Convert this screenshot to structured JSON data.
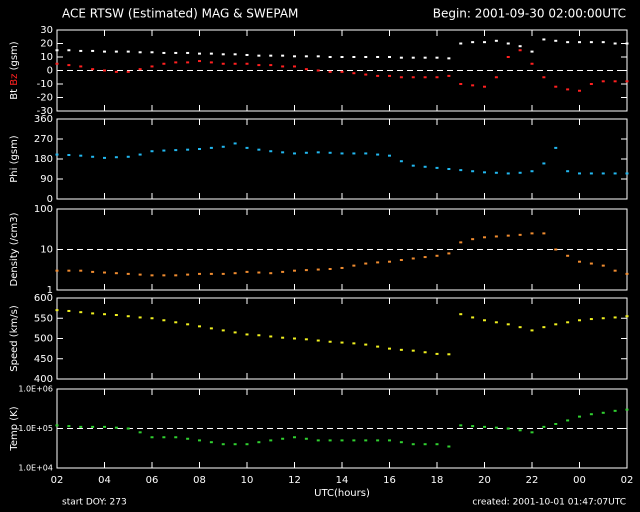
{
  "header": {
    "title": "ACE RTSW (Estimated) MAG & SWEPAM",
    "begin": "Begin: 2001-09-30 02:00:00UTC"
  },
  "footer": {
    "start": "start DOY: 273",
    "created": "created: 2001-10-01 01:47:07UTC"
  },
  "chart_data": [
    {
      "type": "scatter",
      "ylabel": "(gsm)",
      "xlim": [
        2,
        26
      ],
      "ylim": [
        -30,
        30
      ],
      "yticks": [
        30,
        20,
        10,
        0,
        -10,
        -20,
        -30
      ],
      "ref_line": 0,
      "log": false,
      "x": [
        2,
        2.5,
        3,
        3.5,
        4,
        4.5,
        5,
        5.5,
        6,
        6.5,
        7,
        7.5,
        8,
        8.5,
        9,
        9.5,
        10,
        10.5,
        11,
        11.5,
        12,
        12.5,
        13,
        13.5,
        14,
        14.5,
        15,
        15.5,
        16,
        16.5,
        17,
        17.5,
        18,
        18.5,
        19,
        19.5,
        20,
        20.5,
        21,
        21.5,
        22,
        22.5,
        23,
        23.5,
        24,
        24.5,
        25,
        25.5,
        26
      ],
      "series": [
        {
          "name": "Bt",
          "color": "#ffffff",
          "values": [
            15,
            15,
            14.5,
            14.5,
            14,
            14,
            14,
            13.5,
            13.5,
            13,
            13,
            13,
            12.5,
            12.5,
            12,
            12,
            11.5,
            11,
            11,
            11,
            10.5,
            10.5,
            10.5,
            10,
            10,
            10,
            10,
            10,
            10,
            9.5,
            9.5,
            9.5,
            9.5,
            9,
            20,
            21,
            21,
            22,
            20,
            18,
            14,
            23,
            22,
            21,
            21,
            21,
            21,
            20,
            20
          ]
        },
        {
          "name": "Bz",
          "color": "#ff2020",
          "values": [
            5,
            4,
            3,
            1,
            0,
            -1,
            -1,
            1,
            3,
            5,
            6,
            6,
            7,
            6,
            5,
            5,
            5,
            4,
            4,
            3,
            3,
            1,
            0,
            -1,
            -1,
            -2,
            -3,
            -4,
            -4,
            -5,
            -5,
            -5,
            -5,
            -4,
            -10,
            -11,
            -12,
            -5,
            10,
            15,
            5,
            -5,
            -12,
            -14,
            -15,
            -10,
            -8,
            -8,
            -8
          ]
        }
      ]
    },
    {
      "type": "scatter",
      "ylabel": "Phi (gsm)",
      "xlim": [
        2,
        26
      ],
      "ylim": [
        0,
        360
      ],
      "yticks": [
        0,
        90,
        180,
        270,
        360
      ],
      "log": false,
      "x": [
        2,
        2.5,
        3,
        3.5,
        4,
        4.5,
        5,
        5.5,
        6,
        6.5,
        7,
        7.5,
        8,
        8.5,
        9,
        9.5,
        10,
        10.5,
        11,
        11.5,
        12,
        12.5,
        13,
        13.5,
        14,
        14.5,
        15,
        15.5,
        16,
        16.5,
        17,
        17.5,
        18,
        18.5,
        19,
        19.5,
        20,
        20.5,
        21,
        21.5,
        22,
        22.5,
        23,
        23.5,
        24,
        24.5,
        25,
        25.5,
        26
      ],
      "series": [
        {
          "name": "Phi",
          "color": "#22b8f0",
          "values": [
            200,
            198,
            195,
            190,
            185,
            188,
            190,
            200,
            215,
            218,
            220,
            222,
            225,
            230,
            235,
            250,
            230,
            222,
            215,
            210,
            205,
            208,
            210,
            208,
            205,
            205,
            205,
            200,
            195,
            170,
            150,
            145,
            140,
            135,
            130,
            125,
            120,
            118,
            115,
            118,
            125,
            160,
            230,
            125,
            115,
            115,
            115,
            115,
            115
          ]
        }
      ]
    },
    {
      "type": "scatter",
      "ylabel": "Density (/cm3)",
      "xlim": [
        2,
        26
      ],
      "ylim": [
        1,
        100
      ],
      "yticks": [
        1,
        10,
        100
      ],
      "ref_line": 10,
      "log": true,
      "x": [
        2,
        2.5,
        3,
        3.5,
        4,
        4.5,
        5,
        5.5,
        6,
        6.5,
        7,
        7.5,
        8,
        8.5,
        9,
        9.5,
        10,
        10.5,
        11,
        11.5,
        12,
        12.5,
        13,
        13.5,
        14,
        14.5,
        15,
        15.5,
        16,
        16.5,
        17,
        17.5,
        18,
        18.5,
        19,
        19.5,
        20,
        20.5,
        21,
        21.5,
        22,
        22.5,
        23,
        23.5,
        24,
        24.5,
        25,
        25.5,
        26
      ],
      "series": [
        {
          "name": "Density",
          "color": "#f08c30",
          "values": [
            3,
            3,
            3,
            2.8,
            2.7,
            2.6,
            2.5,
            2.4,
            2.3,
            2.3,
            2.3,
            2.4,
            2.5,
            2.5,
            2.5,
            2.6,
            2.8,
            2.7,
            2.6,
            2.8,
            3,
            3.1,
            3.2,
            3.3,
            3.5,
            4,
            4.5,
            4.8,
            5,
            5.5,
            6,
            6.5,
            7,
            8,
            15,
            18,
            20,
            21,
            22,
            23,
            25,
            25,
            10,
            7,
            5,
            4.5,
            4,
            3,
            2.5
          ]
        }
      ]
    },
    {
      "type": "scatter",
      "ylabel": "Speed (km/s)",
      "xlim": [
        2,
        26
      ],
      "ylim": [
        400,
        600
      ],
      "yticks": [
        400,
        450,
        500,
        550,
        600
      ],
      "log": false,
      "x": [
        2,
        2.5,
        3,
        3.5,
        4,
        4.5,
        5,
        5.5,
        6,
        6.5,
        7,
        7.5,
        8,
        8.5,
        9,
        9.5,
        10,
        10.5,
        11,
        11.5,
        12,
        12.5,
        13,
        13.5,
        14,
        14.5,
        15,
        15.5,
        16,
        16.5,
        17,
        17.5,
        18,
        18.5,
        19,
        19.5,
        20,
        20.5,
        21,
        21.5,
        22,
        22.5,
        23,
        23.5,
        24,
        24.5,
        25,
        25.5,
        26
      ],
      "series": [
        {
          "name": "Speed",
          "color": "#f0f020",
          "values": [
            570,
            568,
            565,
            562,
            560,
            558,
            555,
            552,
            550,
            545,
            540,
            535,
            530,
            525,
            520,
            515,
            510,
            508,
            505,
            502,
            500,
            498,
            495,
            492,
            490,
            488,
            485,
            480,
            475,
            472,
            470,
            466,
            462,
            461,
            560,
            552,
            545,
            540,
            535,
            528,
            520,
            528,
            535,
            540,
            545,
            548,
            550,
            552,
            555
          ]
        }
      ]
    },
    {
      "type": "scatter",
      "ylabel": "Temp (K)",
      "xlabel": "UTC(hours)",
      "xlim": [
        2,
        26
      ],
      "ylim": [
        10000,
        1000000
      ],
      "log": true,
      "ref_line": 100000,
      "yticks": [
        {
          "value": 10000,
          "label": "1.0E+04"
        },
        {
          "value": 100000,
          "label": "1.0E+05"
        },
        {
          "value": 1000000,
          "label": "1.0E+06"
        }
      ],
      "xticks": [
        {
          "value": 2,
          "label": "02"
        },
        {
          "value": 4,
          "label": "04"
        },
        {
          "value": 6,
          "label": "06"
        },
        {
          "value": 8,
          "label": "08"
        },
        10,
        12,
        14,
        16,
        18,
        20,
        22,
        {
          "value": 24,
          "label": "00"
        },
        {
          "value": 26,
          "label": "02"
        }
      ],
      "x": [
        2,
        2.5,
        3,
        3.5,
        4,
        4.5,
        5,
        5.5,
        6,
        6.5,
        7,
        7.5,
        8,
        8.5,
        9,
        9.5,
        10,
        10.5,
        11,
        11.5,
        12,
        12.5,
        13,
        13.5,
        14,
        14.5,
        15,
        15.5,
        16,
        16.5,
        17,
        17.5,
        18,
        18.5,
        19,
        19.5,
        20,
        20.5,
        21,
        21.5,
        22,
        22.5,
        23,
        23.5,
        24,
        24.5,
        25,
        25.5,
        26
      ],
      "series": [
        {
          "name": "Temp",
          "color": "#30d030",
          "values": [
            120000,
            115000,
            110000,
            110000,
            110000,
            105000,
            100000,
            80000,
            60000,
            60000,
            60000,
            55000,
            50000,
            45000,
            40000,
            40000,
            40000,
            45000,
            50000,
            55000,
            60000,
            55000,
            50000,
            50000,
            50000,
            50000,
            50000,
            50000,
            50000,
            45000,
            40000,
            40000,
            40000,
            35000,
            120000,
            115000,
            110000,
            105000,
            100000,
            90000,
            80000,
            110000,
            130000,
            160000,
            200000,
            230000,
            250000,
            280000,
            300000
          ]
        }
      ]
    }
  ]
}
